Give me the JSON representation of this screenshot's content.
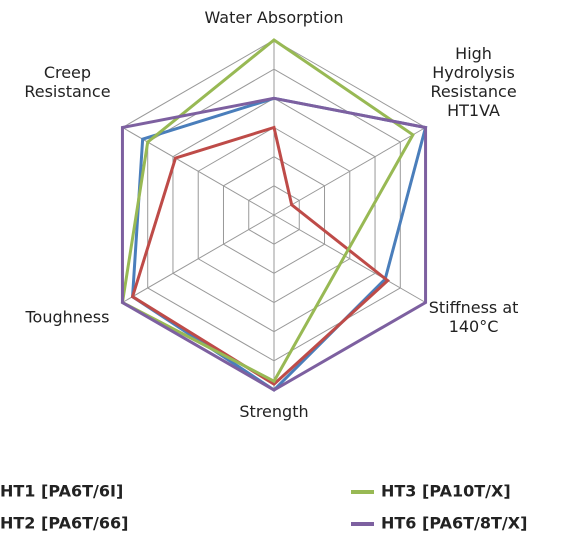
{
  "chart_data": {
    "type": "radar",
    "categories": [
      [
        "Water Absorption"
      ],
      [
        "High",
        "Hydrolysis",
        "Resistance",
        "HT1VA"
      ],
      [
        "Stiffness at",
        "140°C"
      ],
      [
        "Strength"
      ],
      [
        "Toughness"
      ],
      [
        "Creep",
        "Resistance"
      ]
    ],
    "series": [
      {
        "name": "HT1 [PA6T/6I]",
        "color": "#4a7ebb",
        "values": [
          4,
          6,
          4.4,
          6,
          5.6,
          5.2
        ]
      },
      {
        "name": "HT2 [PA6T/66]",
        "color": "#be4b48",
        "values": [
          3,
          0.7,
          4.5,
          5.8,
          5.6,
          3.9
        ]
      },
      {
        "name": "HT3 [PA10T/X]",
        "color": "#98b954",
        "values": [
          6,
          5.5,
          2.8,
          5.7,
          6,
          5
        ]
      },
      {
        "name": "HT6 [PA6T/8T/X]",
        "color": "#7d60a0",
        "values": [
          4,
          6,
          6,
          6,
          6,
          6
        ]
      }
    ],
    "rlim": [
      0,
      6
    ],
    "rticks": [
      1,
      2,
      3,
      4,
      5,
      6
    ],
    "grid": true,
    "legend": "bottom"
  }
}
